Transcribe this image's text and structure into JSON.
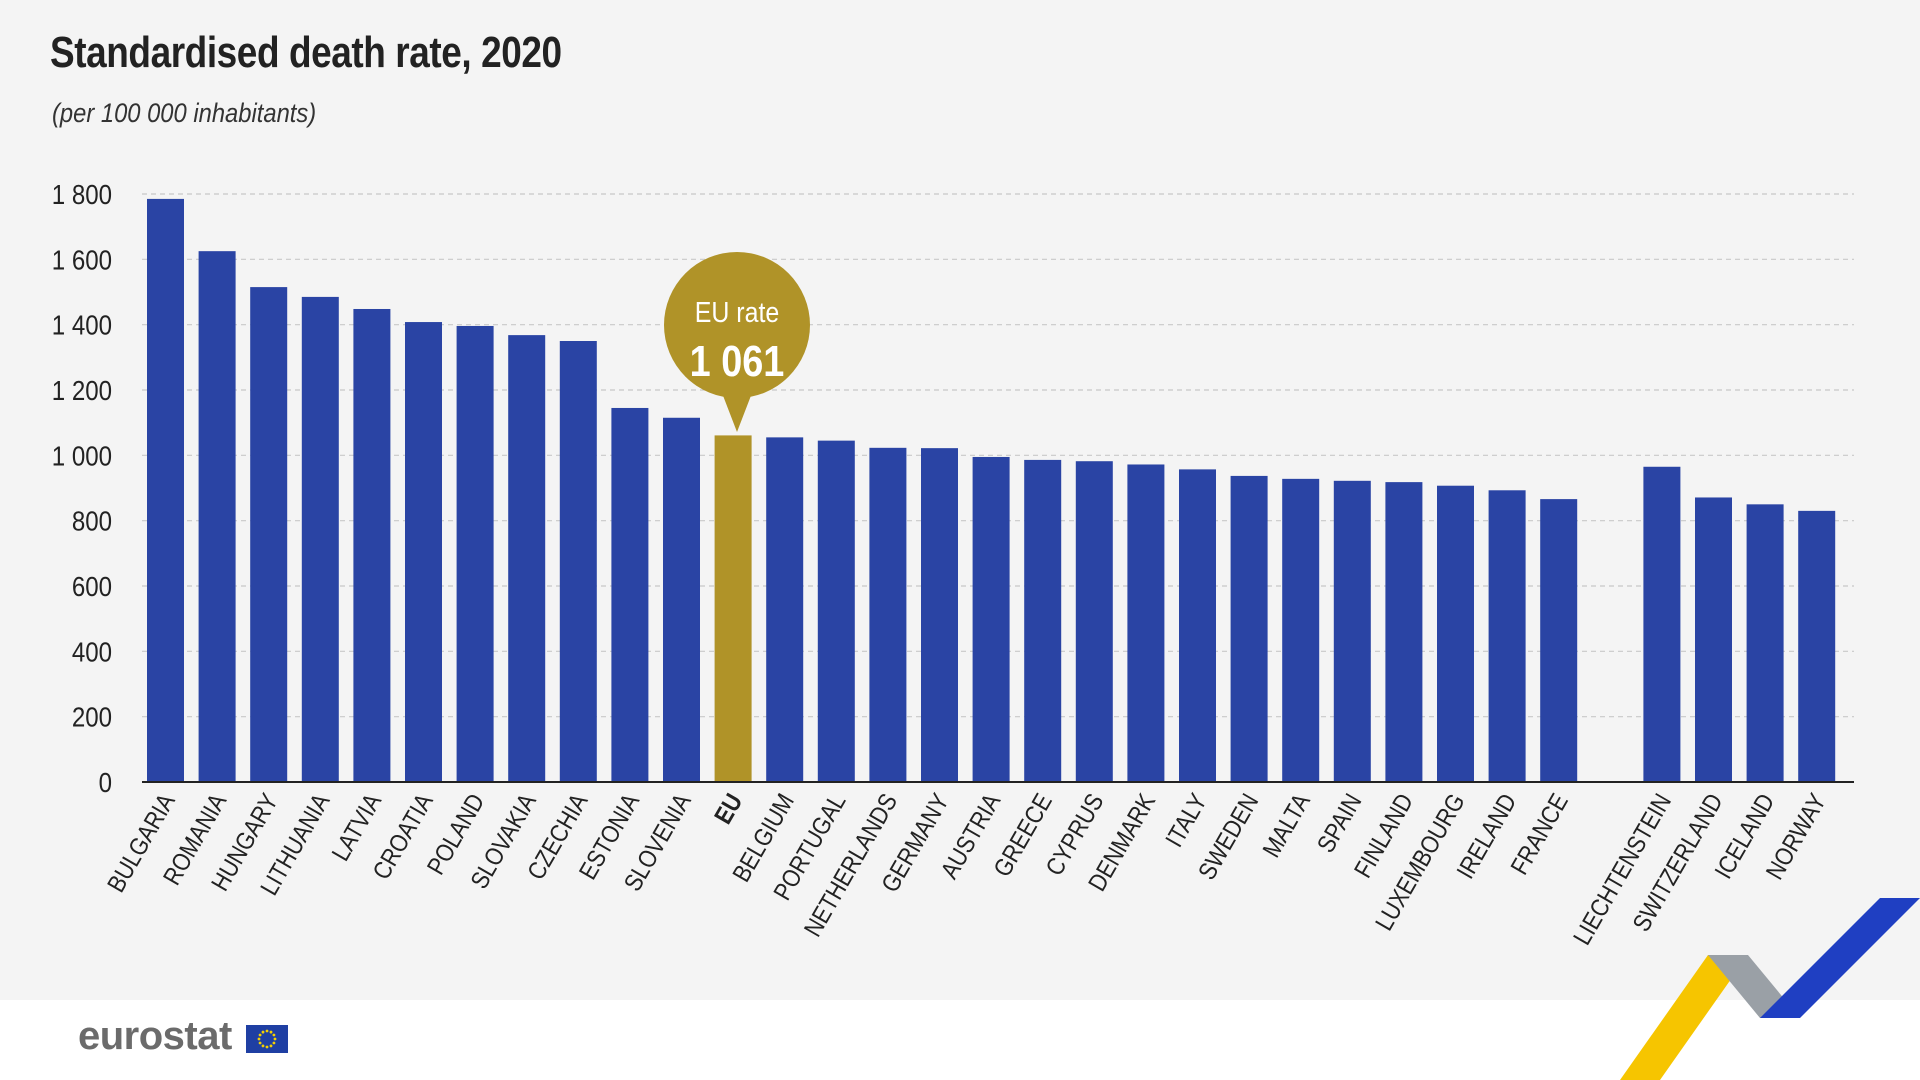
{
  "chart_data": {
    "type": "bar",
    "title": "Standardised death rate, 2020",
    "subtitle": "(per 100 000 inhabitants)",
    "categories": [
      "BULGARIA",
      "ROMANIA",
      "HUNGARY",
      "LITHUANIA",
      "LATVIA",
      "CROATIA",
      "POLAND",
      "SLOVAKIA",
      "CZECHIA",
      "ESTONIA",
      "SLOVENIA",
      "EU",
      "BELGIUM",
      "PORTUGAL",
      "NETHERLANDS",
      "GERMANY",
      "AUSTRIA",
      "GREECE",
      "CYPRUS",
      "DENMARK",
      "ITALY",
      "SWEDEN",
      "MALTA",
      "SPAIN",
      "FINLAND",
      "LUXEMBOURG",
      "IRELAND",
      "FRANCE",
      "LIECHTENSTEIN",
      "SWITZERLAND",
      "ICELAND",
      "NORWAY"
    ],
    "values": [
      1785,
      1625,
      1515,
      1485,
      1448,
      1408,
      1396,
      1368,
      1350,
      1145,
      1115,
      1061,
      1055,
      1045,
      1023,
      1022,
      995,
      986,
      982,
      972,
      957,
      937,
      928,
      922,
      918,
      907,
      893,
      866,
      965,
      871,
      850,
      830
    ],
    "highlight": "EU",
    "ylim": [
      0,
      1800
    ],
    "yticks": [
      0,
      200,
      400,
      600,
      800,
      1000,
      1200,
      1400,
      1600,
      1800
    ],
    "ytick_labels": [
      "0",
      "200",
      "400",
      "600",
      "800",
      "1 000",
      "1 200",
      "1 400",
      "1 600",
      "1 800"
    ],
    "grid": true,
    "colors": {
      "bar": "#2a44a4",
      "highlight": "#b09328",
      "grid": "#c8c8c8",
      "axis": "#222222"
    },
    "annotation": {
      "label": "EU rate",
      "value": "1 061"
    }
  },
  "footer": {
    "logo_text": "eurostat"
  }
}
